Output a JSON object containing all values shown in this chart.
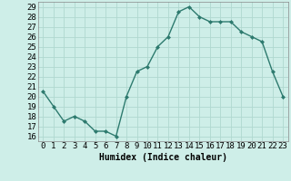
{
  "x": [
    0,
    1,
    2,
    3,
    4,
    5,
    6,
    7,
    8,
    9,
    10,
    11,
    12,
    13,
    14,
    15,
    16,
    17,
    18,
    19,
    20,
    21,
    22,
    23
  ],
  "y": [
    20.5,
    19.0,
    17.5,
    18.0,
    17.5,
    16.5,
    16.5,
    16.0,
    20.0,
    22.5,
    23.0,
    25.0,
    26.0,
    28.5,
    29.0,
    28.0,
    27.5,
    27.5,
    27.5,
    26.5,
    26.0,
    25.5,
    22.5,
    20.0
  ],
  "line_color": "#2d7a6e",
  "marker": "D",
  "marker_size": 2.0,
  "linewidth": 1.0,
  "xlabel": "Humidex (Indice chaleur)",
  "xlim": [
    -0.5,
    23.5
  ],
  "ylim": [
    15.5,
    29.5
  ],
  "yticks": [
    16,
    17,
    18,
    19,
    20,
    21,
    22,
    23,
    24,
    25,
    26,
    27,
    28,
    29
  ],
  "xticks": [
    0,
    1,
    2,
    3,
    4,
    5,
    6,
    7,
    8,
    9,
    10,
    11,
    12,
    13,
    14,
    15,
    16,
    17,
    18,
    19,
    20,
    21,
    22,
    23
  ],
  "xtick_labels": [
    "0",
    "1",
    "2",
    "3",
    "4",
    "5",
    "6",
    "7",
    "8",
    "9",
    "10",
    "11",
    "12",
    "13",
    "14",
    "15",
    "16",
    "17",
    "18",
    "19",
    "20",
    "21",
    "22",
    "23"
  ],
  "bg_color": "#ceeee8",
  "grid_color": "#b0d8d0",
  "xlabel_fontsize": 7,
  "tick_fontsize": 6.5
}
